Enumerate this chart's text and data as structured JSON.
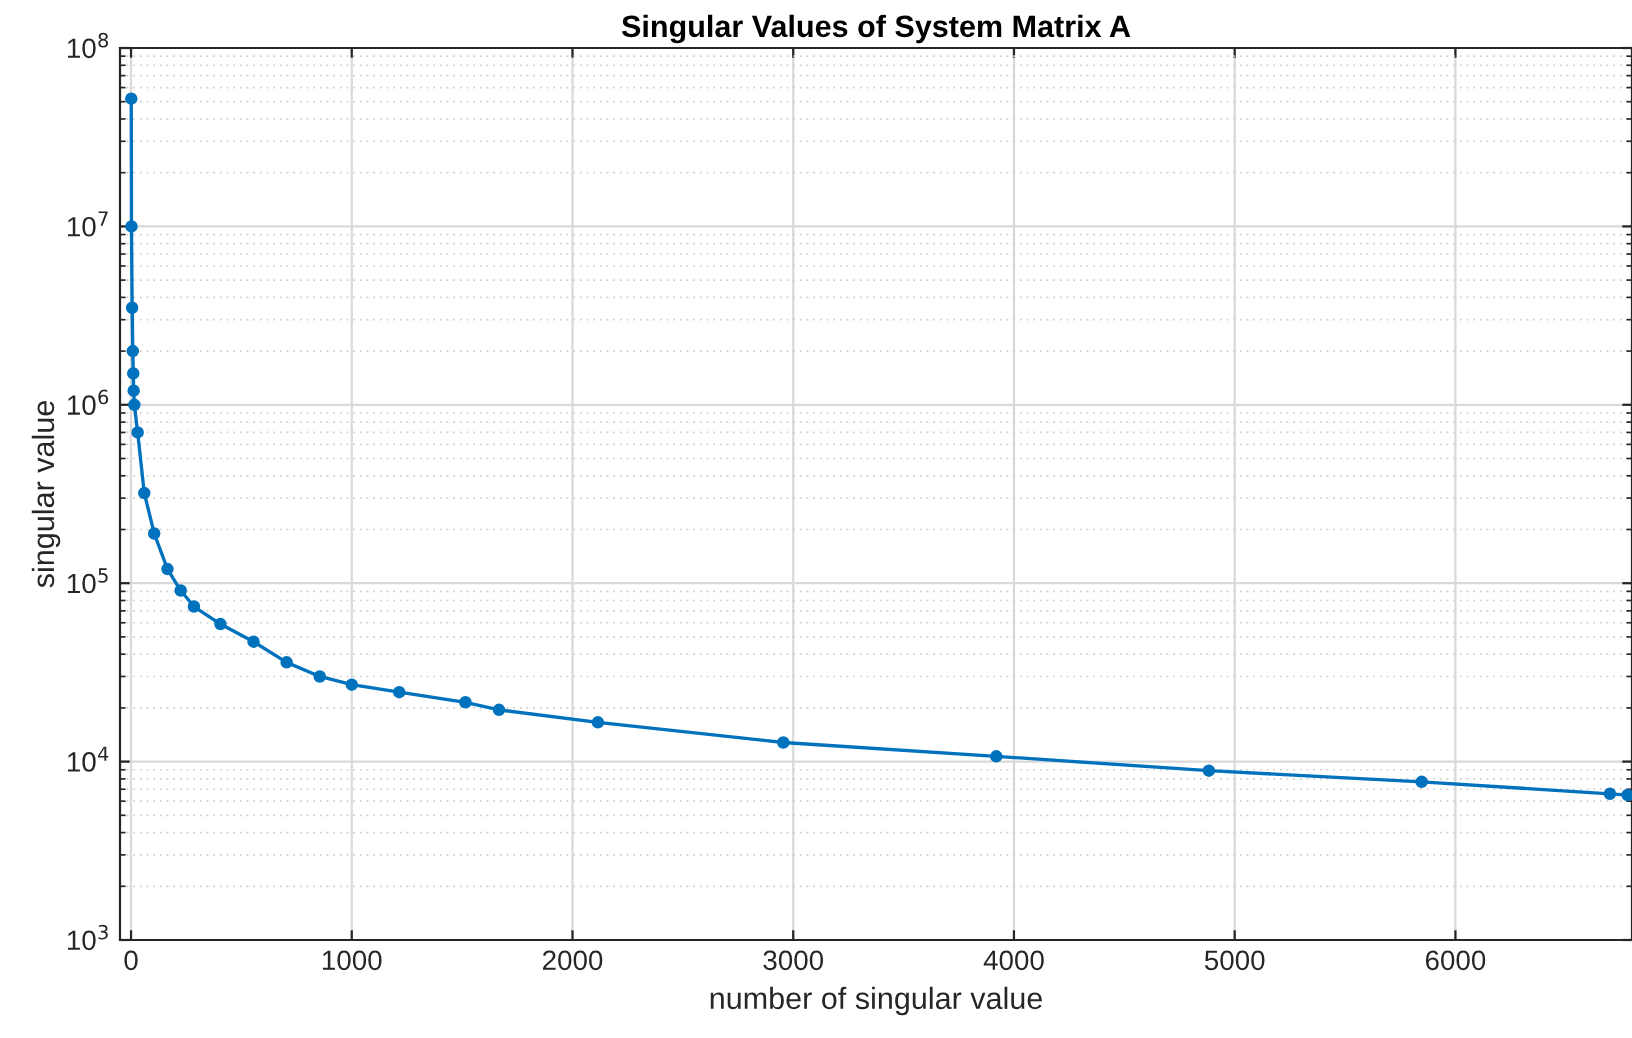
{
  "chart_data": {
    "type": "line",
    "title": "Singular Values of System Matrix A",
    "xlabel": "number of singular value",
    "ylabel": "singular value",
    "log": "y",
    "grid": true,
    "marker": "circle",
    "line_style": "solid",
    "xlim": [
      -50,
      6800
    ],
    "xticks": [
      0,
      1000,
      2000,
      3000,
      4000,
      5000,
      6000
    ],
    "ylim": [
      1000,
      100000000
    ],
    "yticks": [
      {
        "value": 1000,
        "label": "10$^{3}$"
      },
      {
        "value": 10000,
        "label": "10$^{4}$"
      },
      {
        "value": 100000,
        "label": "10$^{5}$"
      },
      {
        "value": 1000000,
        "label": "10$^{6}$"
      },
      {
        "value": 10000000,
        "label": "10$^{7}$"
      },
      {
        "value": 100000000,
        "label": "10$^{8}$"
      }
    ],
    "series": [
      {
        "color": "#0072bd",
        "x": [
          1,
          2,
          5,
          8,
          10,
          12,
          15,
          30,
          60,
          105,
          165,
          225,
          285,
          405,
          555,
          705,
          855,
          1000,
          1215,
          1515,
          1667,
          2115,
          2955,
          3920,
          4883,
          5847,
          6700,
          6780
        ],
        "values": [
          52000000,
          10000000,
          3500000,
          2000000,
          1500000,
          1200000,
          1000000,
          700000,
          320000,
          190000,
          120000,
          91000,
          74000,
          59000,
          47000,
          36000,
          30000,
          27000,
          24500,
          21500,
          19500,
          16600,
          12800,
          10700,
          8900,
          7700,
          6600,
          6500
        ]
      }
    ]
  }
}
